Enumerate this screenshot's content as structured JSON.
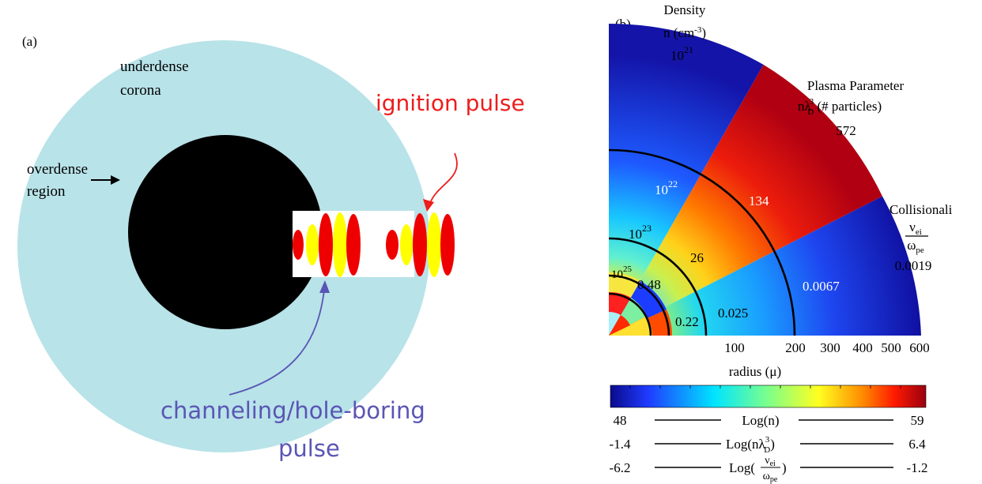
{
  "panel_a": {
    "label": "(a)",
    "corona_label": [
      "underdense",
      "corona"
    ],
    "overdense_label": [
      "overdense",
      "region"
    ],
    "ignition_label": "ignition pulse",
    "channeling_label": [
      "channeling/hole-boring",
      "pulse"
    ],
    "colors": {
      "corona": "#b8e3e8",
      "core": "#000000",
      "channel": "#ffffff",
      "pulse_red": "#ee0000",
      "pulse_yellow": "#ffff00",
      "ignition_text": "#ee1c1c",
      "channeling_text": "#5a55b5"
    }
  },
  "panel_b": {
    "label": "(b)",
    "density_title": [
      "Density",
      "n (cm",
      "-3",
      ")"
    ],
    "density_base": "10",
    "density_exp": "21",
    "plasma_title": [
      "Plasma Parameter",
      "nλ",
      "3",
      "D",
      " (# particles)"
    ],
    "collision_title": "Collisionali",
    "collision_frac": {
      "num": "ν",
      "num_sub": "ei",
      "den": "ω",
      "den_sub": "pe"
    },
    "density_labels": [
      {
        "base": "10",
        "exp": "22"
      },
      {
        "base": "10",
        "exp": "23"
      },
      {
        "base": "10",
        "exp": "25"
      }
    ],
    "plasma_values": [
      "572",
      "134",
      "26",
      "0.48"
    ],
    "collision_values": [
      "0.0019",
      "0.0067",
      "0.025",
      "0.22"
    ],
    "radius_ticks": [
      "100",
      "200",
      "300",
      "400",
      "500",
      "600"
    ],
    "radius_label": "radius (μ)",
    "colorbar_rows": [
      {
        "min": "48",
        "label": "Log(n)",
        "max": "59"
      },
      {
        "min": "-1.4",
        "label": "Log(nλ",
        "sup": "3",
        "sub": "D",
        "tail": ")",
        "max": "6.4"
      },
      {
        "min": "-6.2",
        "label": "Log(",
        "frac_num": "ν",
        "frac_num_sub": "ei",
        "frac_den": "ω",
        "frac_den_sub": "pe",
        "tail": ")",
        "max": "-1.2"
      }
    ]
  }
}
